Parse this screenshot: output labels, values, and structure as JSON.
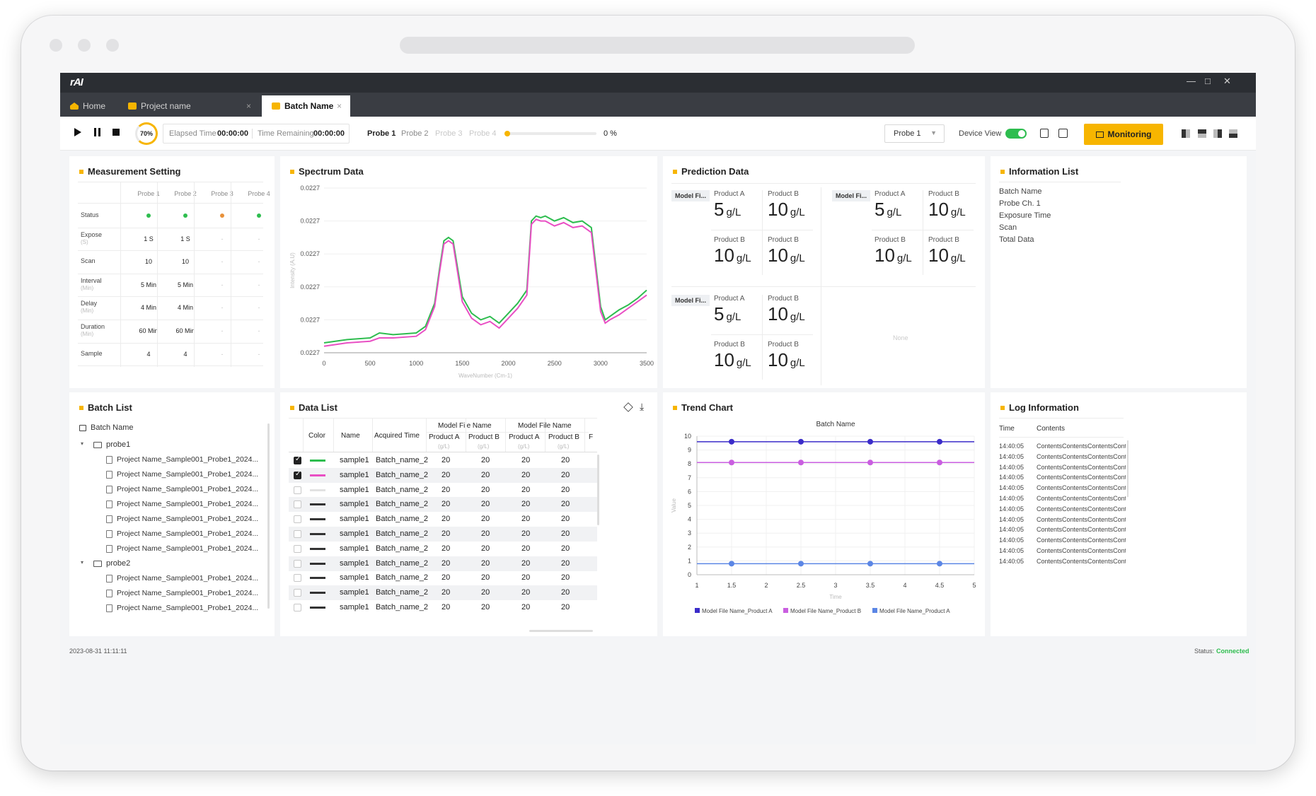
{
  "app": {
    "logo": "rAI",
    "minimize": "—",
    "maximize": "□",
    "close": "✕"
  },
  "tabs": [
    {
      "label": "Home"
    },
    {
      "label": "Project name",
      "close": "×"
    },
    {
      "label": "Batch Name",
      "close": "×"
    }
  ],
  "toolbar": {
    "progress": "70%",
    "elapsed_label": "Elapsed Time",
    "elapsed_value": "00:00:00",
    "remaining_label": "Time Remaining",
    "remaining_value": "00:00:00",
    "probes": [
      "Probe 1",
      "Probe 2",
      "Probe 3",
      "Probe 4"
    ],
    "percent": "0 %",
    "probe_select": "Probe 1",
    "device_view": "Device View",
    "monitoring": "Monitoring"
  },
  "colors": {
    "accent": "#f7b500",
    "green": "#2ebd4f",
    "orange": "#e8913a",
    "pink": "#e94fc4",
    "blue": "#5b86e5",
    "navy": "#3b2cc9",
    "purple": "#c95ee0",
    "titlebar": "#2b2e33"
  },
  "measurement": {
    "title": "Measurement Setting",
    "columns": [
      "Probe 1",
      "Probe 2",
      "Probe 3",
      "Probe 4"
    ],
    "rows": [
      {
        "label": "Status",
        "sub": "",
        "values": [
          "",
          "",
          "",
          ""
        ]
      },
      {
        "label": "Expose",
        "sub": "(S)",
        "values": [
          "1 S",
          "1 S",
          "-",
          "-"
        ]
      },
      {
        "label": "Scan",
        "sub": "",
        "values": [
          "10",
          "10",
          "-",
          "-"
        ]
      },
      {
        "label": "Interval",
        "sub": "(Min)",
        "values": [
          "5 Min",
          "5 Min",
          "-",
          "-"
        ]
      },
      {
        "label": "Delay",
        "sub": "(Min)",
        "values": [
          "4 Min",
          "4 Min",
          "-",
          "-"
        ]
      },
      {
        "label": "Duration",
        "sub": "(Min)",
        "values": [
          "60 Min",
          "60 Min",
          "-",
          "-"
        ]
      },
      {
        "label": "Sample",
        "sub": "",
        "values": [
          "4",
          "4",
          "-",
          "-"
        ]
      }
    ]
  },
  "spectrum": {
    "title": "Spectrum Data",
    "y_ticks": [
      "0.0227",
      "0.0227",
      "0.0227",
      "0.0227",
      "0.0227",
      "0.0227"
    ],
    "x_ticks": [
      "0",
      "500",
      "1000",
      "1500",
      "2000",
      "2500",
      "3000",
      "3500"
    ],
    "ylabel": "Intensity (A.U)",
    "xlabel": "WaveNumber (Cm-1)"
  },
  "prediction": {
    "title": "Prediction Data",
    "model": "Model Fi...",
    "labelA": "Product A",
    "labelB": "Product B",
    "v5": "5",
    "v10": "10",
    "unit": "g/L",
    "none": "None"
  },
  "info": {
    "title": "Information List",
    "items": [
      "Batch Name",
      "Probe Ch. 1",
      "Exposure Time",
      "Scan",
      "Total Data"
    ]
  },
  "batch": {
    "title": "Batch List",
    "root": "Batch Name",
    "folders": [
      {
        "name": "probe1",
        "files": [
          "Project Name_Sample001_Probe1_2024...",
          "Project Name_Sample001_Probe1_2024...",
          "Project Name_Sample001_Probe1_2024...",
          "Project Name_Sample001_Probe1_2024...",
          "Project Name_Sample001_Probe1_2024...",
          "Project Name_Sample001_Probe1_2024...",
          "Project Name_Sample001_Probe1_2024..."
        ]
      },
      {
        "name": "probe2",
        "files": [
          "Project Name_Sample001_Probe1_2024...",
          "Project Name_Sample001_Probe1_2024...",
          "Project Name_Sample001_Probe1_2024..."
        ]
      }
    ]
  },
  "datalist": {
    "title": "Data List",
    "headers": {
      "color": "Color",
      "name": "Name",
      "time": "Acquired Time",
      "group": "Model File Name",
      "pa": "Product A",
      "pb": "Product B",
      "unit": "(g/L)",
      "more": "F"
    },
    "rows": [
      {
        "name": "sample1",
        "time": "Batch_name_2",
        "a1": "20",
        "b1": "20",
        "a2": "20",
        "b2": "20"
      },
      {
        "name": "sample1",
        "time": "Batch_name_2",
        "a1": "20",
        "b1": "20",
        "a2": "20",
        "b2": "20"
      },
      {
        "name": "sample1",
        "time": "Batch_name_2",
        "a1": "20",
        "b1": "20",
        "a2": "20",
        "b2": "20"
      },
      {
        "name": "sample1",
        "time": "Batch_name_2",
        "a1": "20",
        "b1": "20",
        "a2": "20",
        "b2": "20"
      },
      {
        "name": "sample1",
        "time": "Batch_name_2",
        "a1": "20",
        "b1": "20",
        "a2": "20",
        "b2": "20"
      },
      {
        "name": "sample1",
        "time": "Batch_name_2",
        "a1": "20",
        "b1": "20",
        "a2": "20",
        "b2": "20"
      },
      {
        "name": "sample1",
        "time": "Batch_name_2",
        "a1": "20",
        "b1": "20",
        "a2": "20",
        "b2": "20"
      },
      {
        "name": "sample1",
        "time": "Batch_name_2",
        "a1": "20",
        "b1": "20",
        "a2": "20",
        "b2": "20"
      },
      {
        "name": "sample1",
        "time": "Batch_name_2",
        "a1": "20",
        "b1": "20",
        "a2": "20",
        "b2": "20"
      },
      {
        "name": "sample1",
        "time": "Batch_name_2",
        "a1": "20",
        "b1": "20",
        "a2": "20",
        "b2": "20"
      },
      {
        "name": "sample1",
        "time": "Batch_name_2",
        "a1": "20",
        "b1": "20",
        "a2": "20",
        "b2": "20"
      }
    ]
  },
  "trend": {
    "title": "Trend Chart",
    "chart_title": "Batch Name",
    "xlabel": "Time",
    "ylabel": "Value",
    "legend": [
      "Model File Name_Product A",
      "Model File Name_Product B",
      "Model File Name_Product A"
    ]
  },
  "log": {
    "title": "Log Information",
    "col_time": "Time",
    "col_contents": "Contents",
    "rows": [
      {
        "time": "14:40:05",
        "text": "ContentsContentsContentsConte"
      },
      {
        "time": "14:40:05",
        "text": "ContentsContentsContentsConte"
      },
      {
        "time": "14:40:05",
        "text": "ContentsContentsContentsConte"
      },
      {
        "time": "14:40:05",
        "text": "ContentsContentsContentsConte"
      },
      {
        "time": "14:40:05",
        "text": "ContentsContentsContentsConte"
      },
      {
        "time": "14:40:05",
        "text": "ContentsContentsContentsConte"
      },
      {
        "time": "14:40:05",
        "text": "ContentsContentsContentsConte"
      },
      {
        "time": "14:40:05",
        "text": "ContentsContentsContentsConte"
      },
      {
        "time": "14:40:05",
        "text": "ContentsContentsContentsConte"
      },
      {
        "time": "14:40:05",
        "text": "ContentsContentsContentsConte"
      },
      {
        "time": "14:40:05",
        "text": "ContentsContentsContentsConte"
      },
      {
        "time": "14:40:05",
        "text": "ContentsContentsContentsConte"
      }
    ]
  },
  "footer": {
    "date": "2023-08-31 11:11:11",
    "status_label": "Status:",
    "status_value": "Connected"
  },
  "chart_data": [
    {
      "type": "line",
      "title": "Spectrum Data",
      "xlabel": "WaveNumber (Cm-1)",
      "ylabel": "Intensity (A.U)",
      "xlim": [
        0,
        3500
      ],
      "ylim": [
        0,
        100
      ],
      "x": [
        0,
        250,
        500,
        600,
        750,
        1000,
        1100,
        1200,
        1250,
        1300,
        1350,
        1400,
        1500,
        1600,
        1700,
        1800,
        1900,
        2000,
        2100,
        2200,
        2250,
        2300,
        2350,
        2400,
        2500,
        2600,
        2700,
        2800,
        2900,
        3000,
        3050,
        3100,
        3200,
        3300,
        3400,
        3500
      ],
      "series": [
        {
          "name": "sample1-green",
          "values": [
            6,
            8,
            9,
            12,
            11,
            12,
            16,
            30,
            50,
            68,
            70,
            68,
            34,
            24,
            20,
            22,
            18,
            24,
            30,
            38,
            80,
            83,
            82,
            83,
            80,
            82,
            79,
            80,
            76,
            28,
            20,
            22,
            26,
            29,
            33,
            38
          ]
        },
        {
          "name": "sample1-pink",
          "values": [
            4,
            6,
            7,
            9,
            9,
            10,
            14,
            28,
            48,
            66,
            68,
            66,
            31,
            21,
            17,
            19,
            15,
            21,
            27,
            35,
            78,
            81,
            80,
            80,
            77,
            79,
            76,
            77,
            73,
            25,
            18,
            20,
            23,
            27,
            31,
            35
          ]
        }
      ]
    },
    {
      "type": "line",
      "title": "Batch Name",
      "xlabel": "Time",
      "ylabel": "Value",
      "xlim": [
        1,
        5
      ],
      "ylim": [
        0,
        10
      ],
      "x_ticks": [
        "1",
        "1.5",
        "2",
        "2.5",
        "3",
        "3.5",
        "4",
        "4.5",
        "5"
      ],
      "y_ticks": [
        "0",
        "1",
        "2",
        "3",
        "4",
        "5",
        "6",
        "7",
        "8",
        "9",
        "10"
      ],
      "series": [
        {
          "name": "Model File Name_Product A",
          "color": "#3b2cc9",
          "x": [
            1.5,
            2.5,
            3.5,
            4.5
          ],
          "values": [
            9.6,
            9.6,
            9.6,
            9.6
          ]
        },
        {
          "name": "Model File Name_Product B",
          "color": "#c95ee0",
          "x": [
            1.5,
            2.5,
            3.5,
            4.5
          ],
          "values": [
            8.1,
            8.1,
            8.1,
            8.1
          ]
        },
        {
          "name": "Model File Name_Product A",
          "color": "#5b86e5",
          "x": [
            1.5,
            2.5,
            3.5,
            4.5
          ],
          "values": [
            0.8,
            0.8,
            0.8,
            0.8
          ]
        }
      ]
    }
  ]
}
